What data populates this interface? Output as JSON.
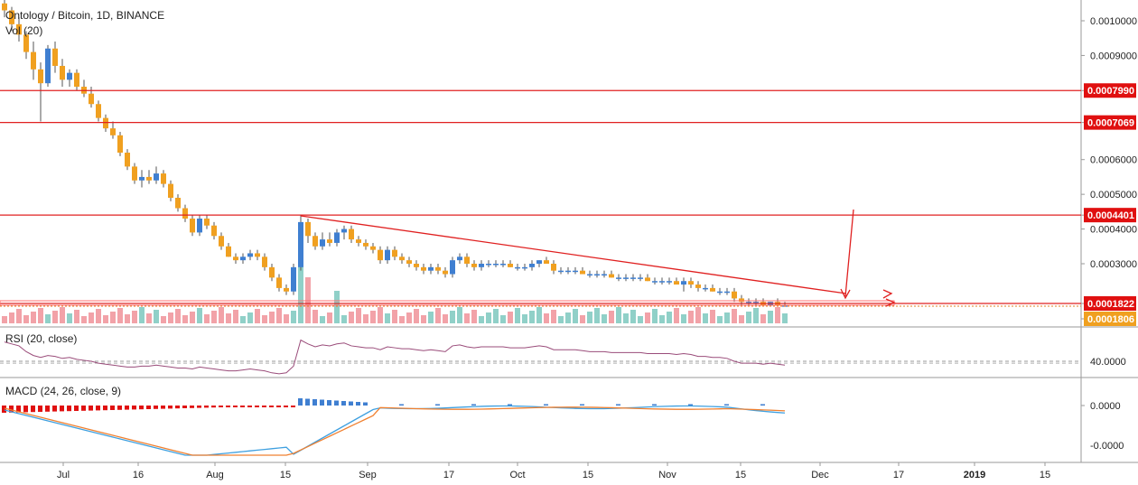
{
  "header": {
    "symbol_title": "Ontology / Bitcoin, 1D, BINANCE",
    "volume_label": "Vol (20)"
  },
  "chart_data": {
    "type": "candlestick",
    "price_axis": {
      "ticks": [
        "0.0010000",
        "0.0009000",
        "0.0007990",
        "0.0007069",
        "0.0006000",
        "0.0005000",
        "0.0004401",
        "0.0004000",
        "0.0003000",
        "0.0001822",
        "0.0001806"
      ],
      "tick_values": [
        0.001,
        0.0009,
        0.000799,
        0.0007069,
        0.0006,
        0.0005,
        0.0004401,
        0.0004,
        0.0003,
        0.0001822,
        0.0001806
      ]
    },
    "time_axis": {
      "ticks": [
        "Jul",
        "16",
        "Aug",
        "15",
        "Sep",
        "17",
        "Oct",
        "15",
        "Nov",
        "15",
        "Dec",
        "17",
        "2019",
        "15"
      ]
    },
    "candles": [
      [
        0.00105,
        0.00108,
        0.00101,
        0.00103
      ],
      [
        0.00103,
        0.00104,
        0.00097,
        0.00099
      ],
      [
        0.00099,
        0.00101,
        0.00094,
        0.00096
      ],
      [
        0.00096,
        0.00097,
        0.00089,
        0.00091
      ],
      [
        0.00091,
        0.00094,
        0.00083,
        0.00086
      ],
      [
        0.00086,
        0.00088,
        0.00071,
        0.00082
      ],
      [
        0.00082,
        0.00093,
        0.00081,
        0.00092
      ],
      [
        0.00092,
        0.00094,
        0.00085,
        0.00087
      ],
      [
        0.00087,
        0.00089,
        0.00081,
        0.00083
      ],
      [
        0.00083,
        0.00086,
        0.00081,
        0.00085
      ],
      [
        0.00085,
        0.00086,
        0.0008,
        0.00081
      ],
      [
        0.00081,
        0.00083,
        0.00078,
        0.00079
      ],
      [
        0.00079,
        0.00081,
        0.00075,
        0.00076
      ],
      [
        0.00076,
        0.00077,
        0.00071,
        0.00072
      ],
      [
        0.00072,
        0.00073,
        0.00068,
        0.00069
      ],
      [
        0.00069,
        0.00071,
        0.00066,
        0.00067
      ],
      [
        0.00067,
        0.00068,
        0.00061,
        0.00062
      ],
      [
        0.00062,
        0.00063,
        0.00057,
        0.00058
      ],
      [
        0.00058,
        0.00059,
        0.00053,
        0.00054
      ],
      [
        0.00054,
        0.00057,
        0.00052,
        0.00055
      ],
      [
        0.00055,
        0.00057,
        0.00053,
        0.00054
      ],
      [
        0.00054,
        0.00058,
        0.00053,
        0.00056
      ],
      [
        0.00056,
        0.00057,
        0.00052,
        0.00053
      ],
      [
        0.00053,
        0.00054,
        0.00048,
        0.00049
      ],
      [
        0.00049,
        0.0005,
        0.00045,
        0.00046
      ],
      [
        0.00046,
        0.00047,
        0.00042,
        0.00043
      ],
      [
        0.00043,
        0.00044,
        0.00038,
        0.00039
      ],
      [
        0.00039,
        0.00044,
        0.00038,
        0.00043
      ],
      [
        0.00043,
        0.00044,
        0.0004,
        0.00041
      ],
      [
        0.00041,
        0.00042,
        0.00037,
        0.00038
      ],
      [
        0.00038,
        0.00039,
        0.00034,
        0.00035
      ],
      [
        0.00035,
        0.00036,
        0.00032,
        0.00032
      ],
      [
        0.00032,
        0.00033,
        0.0003,
        0.00031
      ],
      [
        0.00031,
        0.00033,
        0.0003,
        0.00032
      ],
      [
        0.00032,
        0.00034,
        0.00031,
        0.00033
      ],
      [
        0.00033,
        0.00034,
        0.00031,
        0.00032
      ],
      [
        0.00032,
        0.00033,
        0.00028,
        0.00029
      ],
      [
        0.00029,
        0.0003,
        0.00025,
        0.00026
      ],
      [
        0.00026,
        0.00027,
        0.00022,
        0.00023
      ],
      [
        0.00023,
        0.00024,
        0.00021,
        0.00022
      ],
      [
        0.00022,
        0.0003,
        0.00021,
        0.00029
      ],
      [
        0.00029,
        0.00044,
        0.00028,
        0.00042
      ],
      [
        0.00042,
        0.00043,
        0.00036,
        0.00038
      ],
      [
        0.00038,
        0.00039,
        0.00034,
        0.00035
      ],
      [
        0.00035,
        0.00039,
        0.00034,
        0.00037
      ],
      [
        0.00037,
        0.00039,
        0.00035,
        0.00036
      ],
      [
        0.00036,
        0.0004,
        0.00035,
        0.00039
      ],
      [
        0.00039,
        0.00041,
        0.00037,
        0.0004
      ],
      [
        0.0004,
        0.00041,
        0.00036,
        0.00037
      ],
      [
        0.00037,
        0.00038,
        0.00035,
        0.00036
      ],
      [
        0.00036,
        0.00037,
        0.00034,
        0.00035
      ],
      [
        0.00035,
        0.00036,
        0.00033,
        0.00034
      ],
      [
        0.00034,
        0.00035,
        0.0003,
        0.00031
      ],
      [
        0.00031,
        0.00035,
        0.0003,
        0.00034
      ],
      [
        0.00034,
        0.00035,
        0.00031,
        0.00032
      ],
      [
        0.00032,
        0.00033,
        0.0003,
        0.00031
      ],
      [
        0.00031,
        0.00032,
        0.00029,
        0.0003
      ],
      [
        0.0003,
        0.00031,
        0.00028,
        0.00029
      ],
      [
        0.00029,
        0.0003,
        0.00027,
        0.00028
      ],
      [
        0.00028,
        0.0003,
        0.00027,
        0.00029
      ],
      [
        0.00029,
        0.0003,
        0.00027,
        0.00028
      ],
      [
        0.00028,
        0.00029,
        0.00026,
        0.00027
      ],
      [
        0.00027,
        0.00032,
        0.00026,
        0.00031
      ],
      [
        0.00031,
        0.00033,
        0.0003,
        0.00032
      ],
      [
        0.00032,
        0.00033,
        0.00029,
        0.0003
      ],
      [
        0.0003,
        0.00031,
        0.00028,
        0.00029
      ],
      [
        0.00029,
        0.00031,
        0.00028,
        0.0003
      ],
      [
        0.0003,
        0.00031,
        0.00029,
        0.0003
      ],
      [
        0.0003,
        0.00031,
        0.00029,
        0.0003
      ],
      [
        0.0003,
        0.00031,
        0.00029,
        0.0003
      ],
      [
        0.0003,
        0.00031,
        0.00029,
        0.00029
      ],
      [
        0.00029,
        0.0003,
        0.00028,
        0.00029
      ],
      [
        0.00029,
        0.0003,
        0.00028,
        0.00029
      ],
      [
        0.00029,
        0.00031,
        0.00028,
        0.0003
      ],
      [
        0.0003,
        0.00031,
        0.00029,
        0.00031
      ],
      [
        0.00031,
        0.00032,
        0.0003,
        0.0003
      ],
      [
        0.0003,
        0.00031,
        0.00027,
        0.00028
      ],
      [
        0.00028,
        0.00029,
        0.00027,
        0.00028
      ],
      [
        0.00028,
        0.00029,
        0.00027,
        0.00028
      ],
      [
        0.00028,
        0.00029,
        0.00027,
        0.00028
      ],
      [
        0.00028,
        0.00029,
        0.00027,
        0.00027
      ],
      [
        0.00027,
        0.00028,
        0.00026,
        0.00027
      ],
      [
        0.00027,
        0.00028,
        0.00026,
        0.00027
      ],
      [
        0.00027,
        0.00028,
        0.00026,
        0.00027
      ],
      [
        0.00027,
        0.00028,
        0.00026,
        0.00026
      ],
      [
        0.00026,
        0.00027,
        0.00025,
        0.00026
      ],
      [
        0.00026,
        0.00027,
        0.00025,
        0.00026
      ],
      [
        0.00026,
        0.00027,
        0.00025,
        0.00026
      ],
      [
        0.00026,
        0.00027,
        0.00025,
        0.00026
      ],
      [
        0.00026,
        0.00027,
        0.00025,
        0.00025
      ],
      [
        0.00025,
        0.00026,
        0.00024,
        0.00025
      ],
      [
        0.00025,
        0.00026,
        0.00024,
        0.00025
      ],
      [
        0.00025,
        0.00026,
        0.00024,
        0.00025
      ],
      [
        0.00025,
        0.00026,
        0.00024,
        0.00024
      ],
      [
        0.00024,
        0.00026,
        0.00022,
        0.00025
      ],
      [
        0.00025,
        0.00026,
        0.00023,
        0.00024
      ],
      [
        0.00024,
        0.00025,
        0.00022,
        0.00023
      ],
      [
        0.00023,
        0.00024,
        0.00022,
        0.00023
      ],
      [
        0.00023,
        0.00024,
        0.00022,
        0.00022
      ],
      [
        0.00022,
        0.00023,
        0.00021,
        0.00022
      ],
      [
        0.00022,
        0.00023,
        0.00021,
        0.00022
      ],
      [
        0.00022,
        0.00023,
        0.00019,
        0.0002
      ],
      [
        0.0002,
        0.00021,
        0.00018,
        0.00019
      ],
      [
        0.00019,
        0.0002,
        0.00018,
        0.00019
      ],
      [
        0.00019,
        0.0002,
        0.00018,
        0.00019
      ],
      [
        0.00019,
        0.0002,
        0.00018,
        0.00018
      ],
      [
        0.00018,
        0.00019,
        0.00018,
        0.00019
      ],
      [
        0.00019,
        0.0002,
        0.00018,
        0.00018
      ],
      [
        0.00018,
        0.00019,
        0.00018,
        0.00018
      ]
    ],
    "horizontal_levels": [
      0.000799,
      0.0007069,
      0.0004401,
      0.0001822
    ],
    "trendline": {
      "from": [
        41,
        0.000438
      ],
      "to": [
        109,
        0.000232
      ]
    },
    "rsi": {
      "label": "RSI (20, close)",
      "ticks": [
        "40.0000"
      ],
      "values": [
        60,
        58,
        56,
        50,
        46,
        44,
        46,
        45,
        43,
        44,
        42,
        41,
        40,
        38,
        37,
        36,
        35,
        34,
        34,
        35,
        35,
        36,
        35,
        34,
        33,
        33,
        32,
        34,
        33,
        32,
        31,
        30,
        30,
        31,
        32,
        31,
        30,
        28,
        27,
        28,
        35,
        62,
        58,
        55,
        57,
        56,
        58,
        59,
        56,
        55,
        54,
        54,
        52,
        55,
        54,
        53,
        53,
        52,
        51,
        52,
        51,
        50,
        56,
        57,
        55,
        54,
        55,
        55,
        55,
        55,
        54,
        54,
        54,
        55,
        56,
        55,
        52,
        52,
        52,
        52,
        51,
        50,
        50,
        50,
        49,
        49,
        49,
        49,
        49,
        48,
        48,
        48,
        48,
        47,
        48,
        47,
        45,
        45,
        44,
        44,
        43,
        40,
        38,
        38,
        38,
        37,
        38,
        37,
        36
      ]
    },
    "macd": {
      "label": "MACD (24, 26, close, 9)",
      "ticks": [
        "0.0000",
        "-0.0000"
      ]
    }
  }
}
